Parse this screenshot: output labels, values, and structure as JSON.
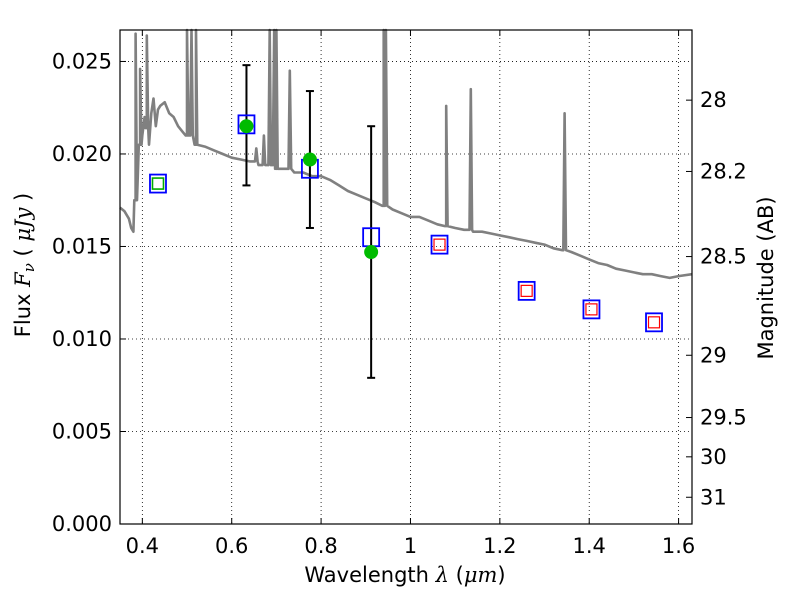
{
  "chart_data": {
    "type": "scatter",
    "xlabel_text": "Wavelength",
    "xlabel_symbol": "λ",
    "xlabel_unit_open": " (",
    "xlabel_unit": "μm",
    "xlabel_unit_close": ")",
    "ylabel_text": "Flux",
    "ylabel_symbol": "F",
    "ylabel_symbol_sub": "ν",
    "ylabel_unit_open": " ( ",
    "ylabel_unit": "μJy",
    "ylabel_unit_close": " )",
    "y2label": "Magnitude (AB)",
    "xlim": [
      0.35,
      1.63
    ],
    "ylim": [
      0.0,
      0.0267
    ],
    "x_ticks": [
      0.4,
      0.6,
      0.8,
      1.0,
      1.2,
      1.4,
      1.6
    ],
    "x_tick_labels": [
      "0.4",
      "0.6",
      "0.8",
      "1",
      "1.2",
      "1.4",
      "1.6"
    ],
    "y_ticks": [
      0.0,
      0.005,
      0.01,
      0.015,
      0.02,
      0.025
    ],
    "y_tick_labels": [
      "0.000",
      "0.005",
      "0.010",
      "0.015",
      "0.020",
      "0.025"
    ],
    "mag_ticks": [
      28,
      28.2,
      28.5,
      29,
      29.5,
      30,
      31
    ],
    "mag_tick_labels": [
      "28",
      "28.2",
      "28.5",
      "29",
      "29.5",
      "30",
      "31"
    ],
    "grid": true,
    "colors": {
      "spectrum": "#808080",
      "model_boxes": "#0000ff",
      "inner_squares": "#ff0000",
      "green_squares": "#00aa00",
      "observed": "#00bb00",
      "errorbars": "#000000",
      "grid": "#000000"
    },
    "series": [
      {
        "kind": "spectrum_line",
        "points": [
          [
            0.35,
            0.0171
          ],
          [
            0.36,
            0.0169
          ],
          [
            0.37,
            0.0165
          ],
          [
            0.375,
            0.016
          ],
          [
            0.38,
            0.0158
          ],
          [
            0.385,
            0.0175
          ],
          [
            0.39,
            0.019
          ],
          [
            0.395,
            0.0205
          ],
          [
            0.4,
            0.021
          ],
          [
            0.405,
            0.022
          ],
          [
            0.41,
            0.0214
          ],
          [
            0.415,
            0.0205
          ],
          [
            0.42,
            0.0222
          ],
          [
            0.425,
            0.023
          ],
          [
            0.43,
            0.0215
          ],
          [
            0.435,
            0.0224
          ],
          [
            0.44,
            0.0226
          ],
          [
            0.45,
            0.0228
          ],
          [
            0.46,
            0.0222
          ],
          [
            0.47,
            0.022
          ],
          [
            0.48,
            0.0215
          ],
          [
            0.49,
            0.0212
          ],
          [
            0.5,
            0.021
          ],
          [
            0.52,
            0.0205
          ],
          [
            0.54,
            0.0204
          ],
          [
            0.56,
            0.0202
          ],
          [
            0.58,
            0.02
          ],
          [
            0.6,
            0.0198
          ],
          [
            0.62,
            0.0197
          ],
          [
            0.64,
            0.0196
          ],
          [
            0.66,
            0.0194
          ],
          [
            0.68,
            0.0194
          ],
          [
            0.7,
            0.0192
          ],
          [
            0.72,
            0.0192
          ],
          [
            0.74,
            0.019
          ],
          [
            0.76,
            0.019
          ],
          [
            0.78,
            0.0188
          ],
          [
            0.8,
            0.0188
          ],
          [
            0.82,
            0.0186
          ],
          [
            0.84,
            0.0183
          ],
          [
            0.86,
            0.018
          ],
          [
            0.88,
            0.0178
          ],
          [
            0.9,
            0.0176
          ],
          [
            0.92,
            0.0174
          ],
          [
            0.94,
            0.0172
          ],
          [
            0.96,
            0.017
          ],
          [
            0.98,
            0.0168
          ],
          [
            1.0,
            0.0166
          ],
          [
            1.02,
            0.0166
          ],
          [
            1.04,
            0.0164
          ],
          [
            1.06,
            0.0162
          ],
          [
            1.08,
            0.0161
          ],
          [
            1.1,
            0.016
          ],
          [
            1.12,
            0.0159
          ],
          [
            1.14,
            0.0158
          ],
          [
            1.16,
            0.0158
          ],
          [
            1.18,
            0.0157
          ],
          [
            1.2,
            0.0156
          ],
          [
            1.22,
            0.0155
          ],
          [
            1.24,
            0.0154
          ],
          [
            1.26,
            0.0153
          ],
          [
            1.28,
            0.0152
          ],
          [
            1.3,
            0.0151
          ],
          [
            1.32,
            0.0149
          ],
          [
            1.34,
            0.0148
          ],
          [
            1.36,
            0.0147
          ],
          [
            1.38,
            0.0145
          ],
          [
            1.4,
            0.0143
          ],
          [
            1.42,
            0.0141
          ],
          [
            1.44,
            0.014
          ],
          [
            1.46,
            0.0138
          ],
          [
            1.48,
            0.0137
          ],
          [
            1.5,
            0.0136
          ],
          [
            1.52,
            0.0135
          ],
          [
            1.54,
            0.0135
          ],
          [
            1.56,
            0.0134
          ],
          [
            1.58,
            0.0133
          ],
          [
            1.6,
            0.0134
          ],
          [
            1.63,
            0.0135
          ]
        ],
        "emission_lines": [
          {
            "x": 0.385,
            "peak": 0.0265
          },
          {
            "x": 0.395,
            "peak": 0.0246
          },
          {
            "x": 0.41,
            "peak": 0.0264
          },
          {
            "x": 0.5,
            "peak": 0.0267
          },
          {
            "x": 0.51,
            "peak": 0.0267
          },
          {
            "x": 0.52,
            "peak": 0.0267
          },
          {
            "x": 0.655,
            "peak": 0.0203
          },
          {
            "x": 0.672,
            "peak": 0.021
          },
          {
            "x": 0.685,
            "peak": 0.0267
          },
          {
            "x": 0.695,
            "peak": 0.0267
          },
          {
            "x": 0.7,
            "peak": 0.0267
          },
          {
            "x": 0.73,
            "peak": 0.0245
          },
          {
            "x": 0.94,
            "peak": 0.0267
          },
          {
            "x": 0.945,
            "peak": 0.0267
          },
          {
            "x": 1.08,
            "peak": 0.0226
          },
          {
            "x": 1.135,
            "peak": 0.0235
          },
          {
            "x": 1.345,
            "peak": 0.0222
          }
        ]
      },
      {
        "kind": "observed_points",
        "x": [
          0.633,
          0.775,
          0.912
        ],
        "y": [
          0.0215,
          0.0197,
          0.0147
        ],
        "yerr_low": [
          0.0183,
          0.016,
          0.0079
        ],
        "yerr_high": [
          0.0248,
          0.0234,
          0.0215
        ]
      },
      {
        "kind": "model_boxes",
        "x": [
          0.435,
          0.633,
          0.775,
          0.912,
          1.065,
          1.26,
          1.405,
          1.545
        ],
        "y": [
          0.0184,
          0.0216,
          0.0192,
          0.0155,
          0.0151,
          0.0126,
          0.0116,
          0.0109
        ]
      },
      {
        "kind": "inner_squares",
        "x": [
          1.065,
          1.26,
          1.405,
          1.545
        ],
        "y": [
          0.0151,
          0.0126,
          0.0116,
          0.0109
        ]
      },
      {
        "kind": "green_squares",
        "x": [
          0.435
        ],
        "y": [
          0.0184
        ]
      }
    ]
  }
}
